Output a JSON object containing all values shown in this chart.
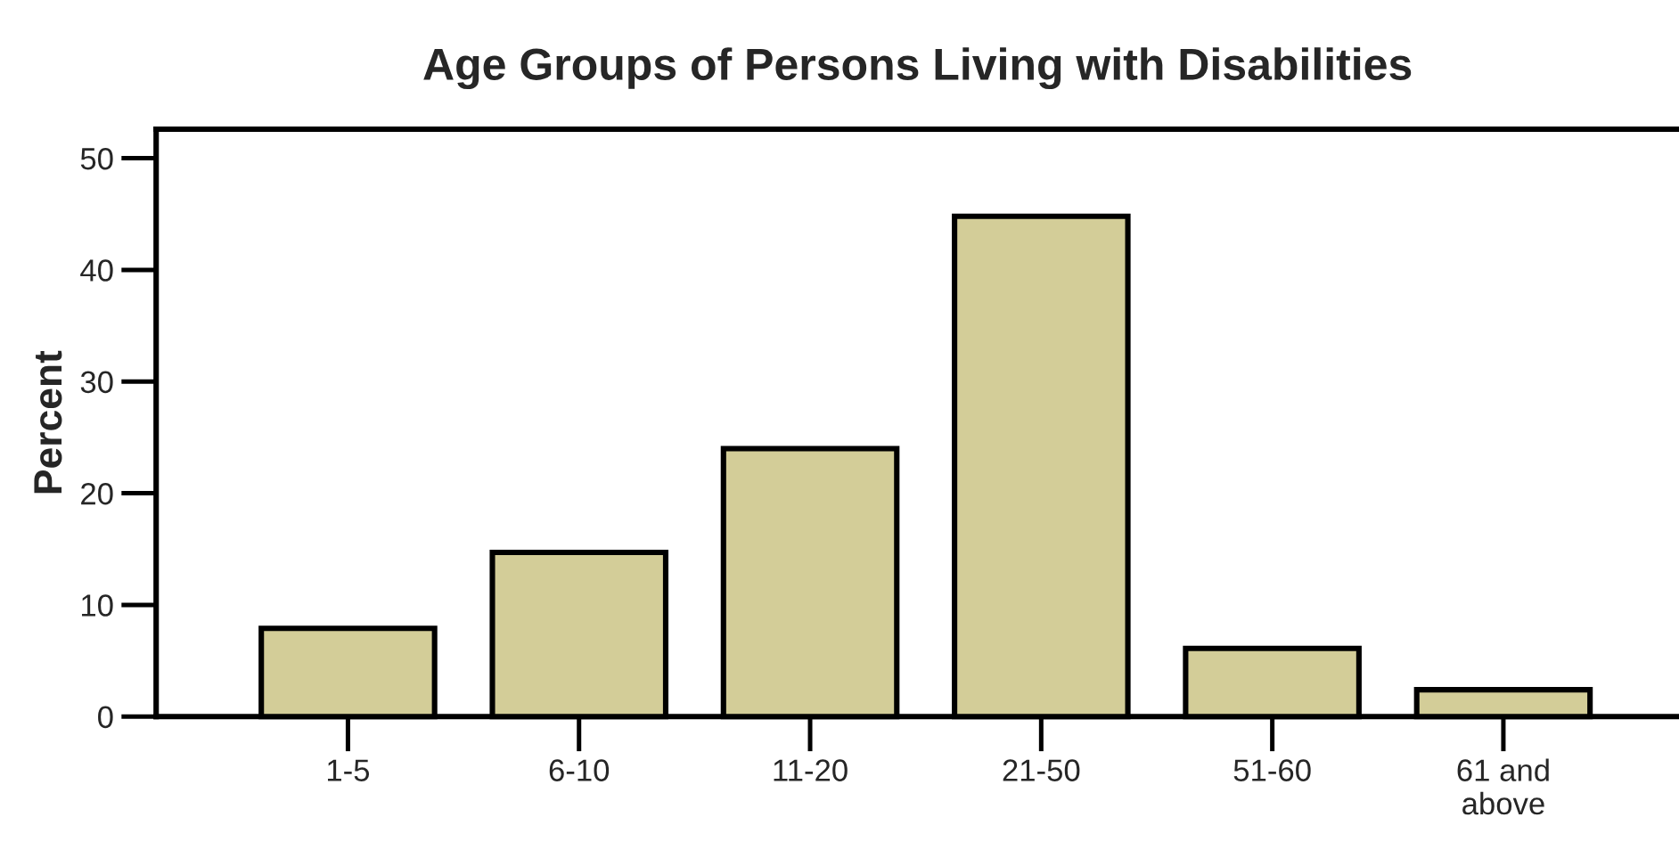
{
  "chart_data": {
    "type": "bar",
    "title": "Age Groups of Persons Living with Disabilities",
    "ylabel": "Percent",
    "categories": [
      "1-5",
      "6-10",
      "11-20",
      "21-50",
      "51-60",
      "61 and\nabove"
    ],
    "values": [
      7.9,
      14.7,
      24.0,
      44.8,
      6.1,
      2.4
    ],
    "color": "#d3cd98",
    "ylim": [
      0,
      52.6
    ],
    "yticks": [
      0,
      10,
      20,
      30,
      40,
      50
    ],
    "grid": false
  }
}
